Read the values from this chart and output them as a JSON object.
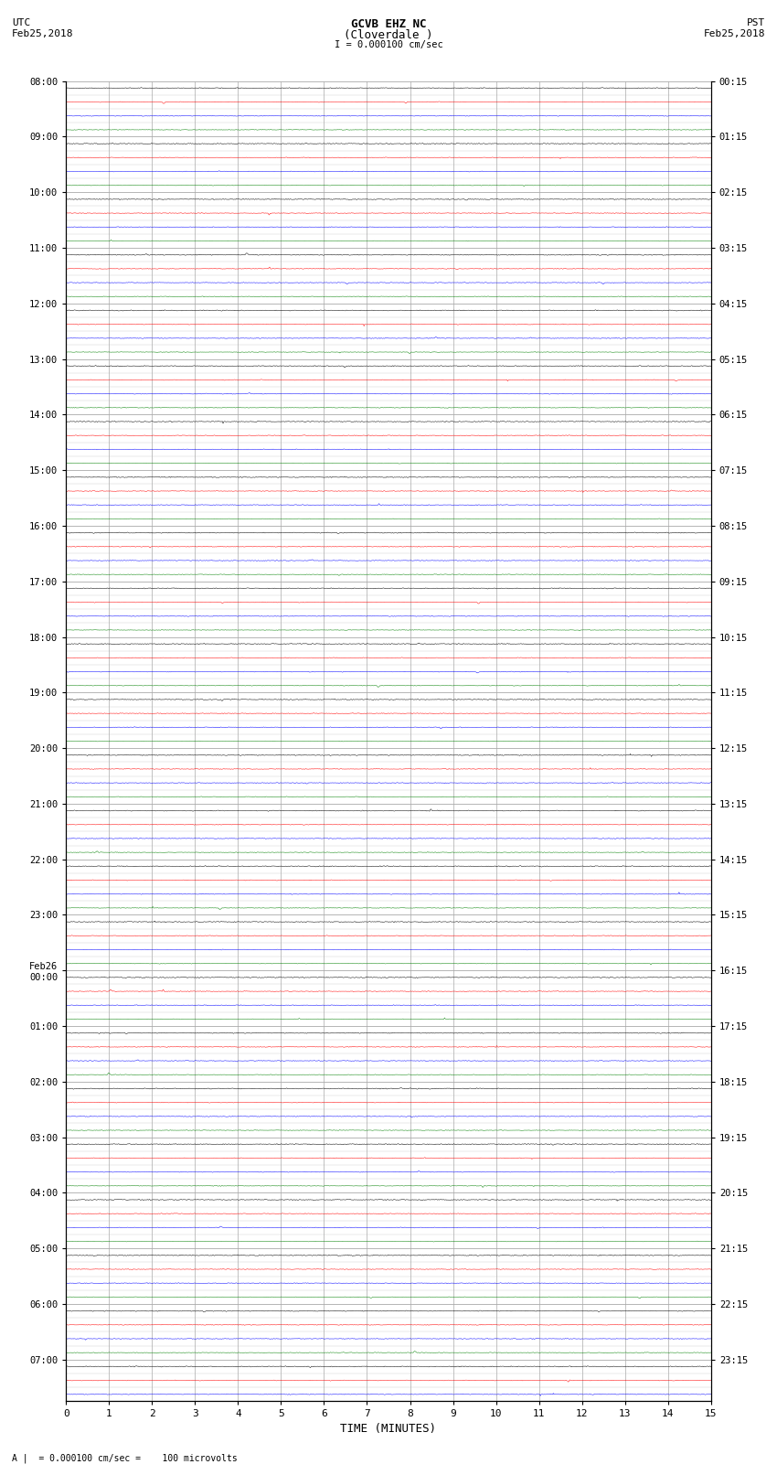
{
  "title_line1": "GCVB EHZ NC",
  "title_line2": "(Cloverdale )",
  "scale_text": "I = 0.000100 cm/sec",
  "footer_text": "A |  = 0.000100 cm/sec =    100 microvolts",
  "left_header_line1": "UTC",
  "left_header_line2": "Feb25,2018",
  "right_header_line1": "PST",
  "right_header_line2": "Feb25,2018",
  "xlabel": "TIME (MINUTES)",
  "xmin": 0,
  "xmax": 15,
  "xticks": [
    0,
    1,
    2,
    3,
    4,
    5,
    6,
    7,
    8,
    9,
    10,
    11,
    12,
    13,
    14,
    15
  ],
  "trace_colors": [
    "black",
    "red",
    "blue",
    "green"
  ],
  "background_color": "white",
  "grid_color": "#aaaaaa",
  "utc_labels": [
    "08:00",
    "",
    "",
    "",
    "09:00",
    "",
    "",
    "",
    "10:00",
    "",
    "",
    "",
    "11:00",
    "",
    "",
    "",
    "12:00",
    "",
    "",
    "",
    "13:00",
    "",
    "",
    "",
    "14:00",
    "",
    "",
    "",
    "15:00",
    "",
    "",
    "",
    "16:00",
    "",
    "",
    "",
    "17:00",
    "",
    "",
    "",
    "18:00",
    "",
    "",
    "",
    "19:00",
    "",
    "",
    "",
    "20:00",
    "",
    "",
    "",
    "21:00",
    "",
    "",
    "",
    "22:00",
    "",
    "",
    "",
    "23:00",
    "",
    "",
    "",
    "Feb26\n00:00",
    "",
    "",
    "",
    "01:00",
    "",
    "",
    "",
    "02:00",
    "",
    "",
    "",
    "03:00",
    "",
    "",
    "",
    "04:00",
    "",
    "",
    "",
    "05:00",
    "",
    "",
    "",
    "06:00",
    "",
    "",
    "",
    "07:00",
    "",
    ""
  ],
  "pst_labels": [
    "00:15",
    "",
    "",
    "",
    "01:15",
    "",
    "",
    "",
    "02:15",
    "",
    "",
    "",
    "03:15",
    "",
    "",
    "",
    "04:15",
    "",
    "",
    "",
    "05:15",
    "",
    "",
    "",
    "06:15",
    "",
    "",
    "",
    "07:15",
    "",
    "",
    "",
    "08:15",
    "",
    "",
    "",
    "09:15",
    "",
    "",
    "",
    "10:15",
    "",
    "",
    "",
    "11:15",
    "",
    "",
    "",
    "12:15",
    "",
    "",
    "",
    "13:15",
    "",
    "",
    "",
    "14:15",
    "",
    "",
    "",
    "15:15",
    "",
    "",
    "",
    "16:15",
    "",
    "",
    "",
    "17:15",
    "",
    "",
    "",
    "18:15",
    "",
    "",
    "",
    "19:15",
    "",
    "",
    "",
    "20:15",
    "",
    "",
    "",
    "21:15",
    "",
    "",
    "",
    "22:15",
    "",
    "",
    "",
    "23:15",
    "",
    ""
  ],
  "figwidth": 8.5,
  "figheight": 16.13,
  "dpi": 100
}
